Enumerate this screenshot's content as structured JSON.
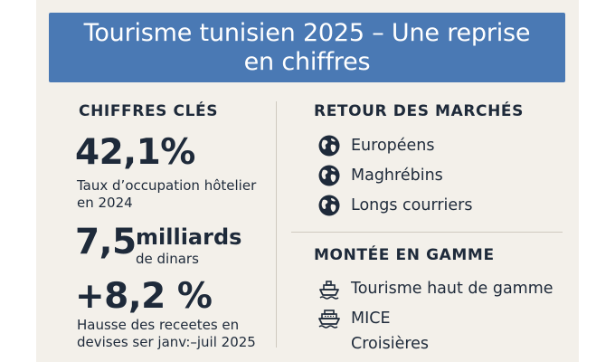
{
  "banner": {
    "title_line1": "Tourisme tunisien 2025 – Une reprise",
    "title_line2": "en chiffres"
  },
  "left": {
    "heading": "CHIFFRES CLÉS",
    "stat1": {
      "value": "42,1%",
      "desc_line1": "Taux d’occupation hôtelier",
      "desc_line2": "en 2024"
    },
    "stat2": {
      "value": "7,5",
      "unit": "milliards",
      "desc": "de dinars"
    },
    "stat3": {
      "value": "+8,2 %",
      "desc_line1": "Hausse des receetes en",
      "desc_line2": "devises ser janv:–juil 2025"
    }
  },
  "right": {
    "markets_heading": "RETOUR DES MARCHÉS",
    "markets": [
      {
        "label": "Européens",
        "icon": "globe-icon"
      },
      {
        "label": "Maghrébins",
        "icon": "globe-icon"
      },
      {
        "label": "Longs courriers",
        "icon": "globe-icon"
      }
    ],
    "range_heading": "MONTÉE EN GAMME",
    "range": [
      {
        "label": "Tourisme haut de gamme",
        "icon": "cruise-ship-icon"
      },
      {
        "label": "MICE",
        "icon": "ship-icon"
      },
      {
        "label": "Croisières",
        "icon": ""
      }
    ]
  },
  "colors": {
    "banner": "#4a79b4",
    "background": "#f3f0ea",
    "text": "#1e2a3a"
  }
}
